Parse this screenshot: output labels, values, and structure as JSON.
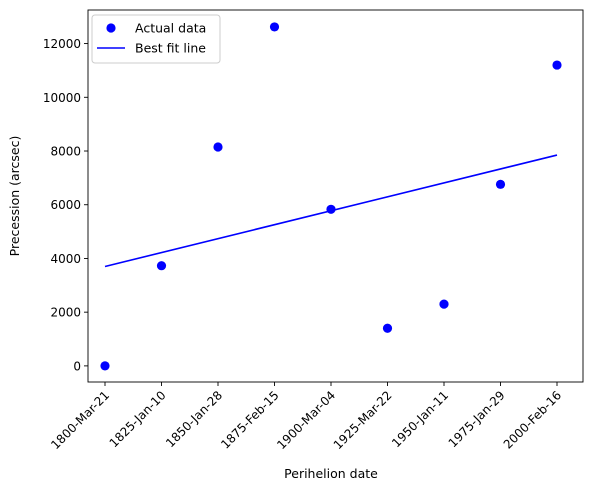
{
  "chart_data": {
    "type": "scatter",
    "xlabel": "Perihelion date",
    "ylabel": "Precession (arcsec)",
    "categories": [
      "1800-Mar-21",
      "1825-Jan-10",
      "1850-Jan-28",
      "1875-Feb-15",
      "1900-Mar-04",
      "1925-Mar-22",
      "1950-Jan-11",
      "1975-Jan-29",
      "2000-Feb-16"
    ],
    "ylim": [
      -600,
      13250
    ],
    "yticks": [
      0,
      2000,
      4000,
      6000,
      8000,
      10000,
      12000
    ],
    "grid": false,
    "legend_position": "top-left",
    "series": [
      {
        "name": "Actual data",
        "kind": "scatter",
        "color": "#0000ff",
        "values": [
          0,
          3730,
          8150,
          12620,
          5830,
          1400,
          2300,
          6760,
          11200
        ]
      },
      {
        "name": "Best fit line",
        "kind": "line",
        "color": "#0000ff",
        "start": {
          "x": "1800-Mar-21",
          "y": 3700
        },
        "end": {
          "x": "2000-Feb-16",
          "y": 7850
        }
      }
    ]
  }
}
